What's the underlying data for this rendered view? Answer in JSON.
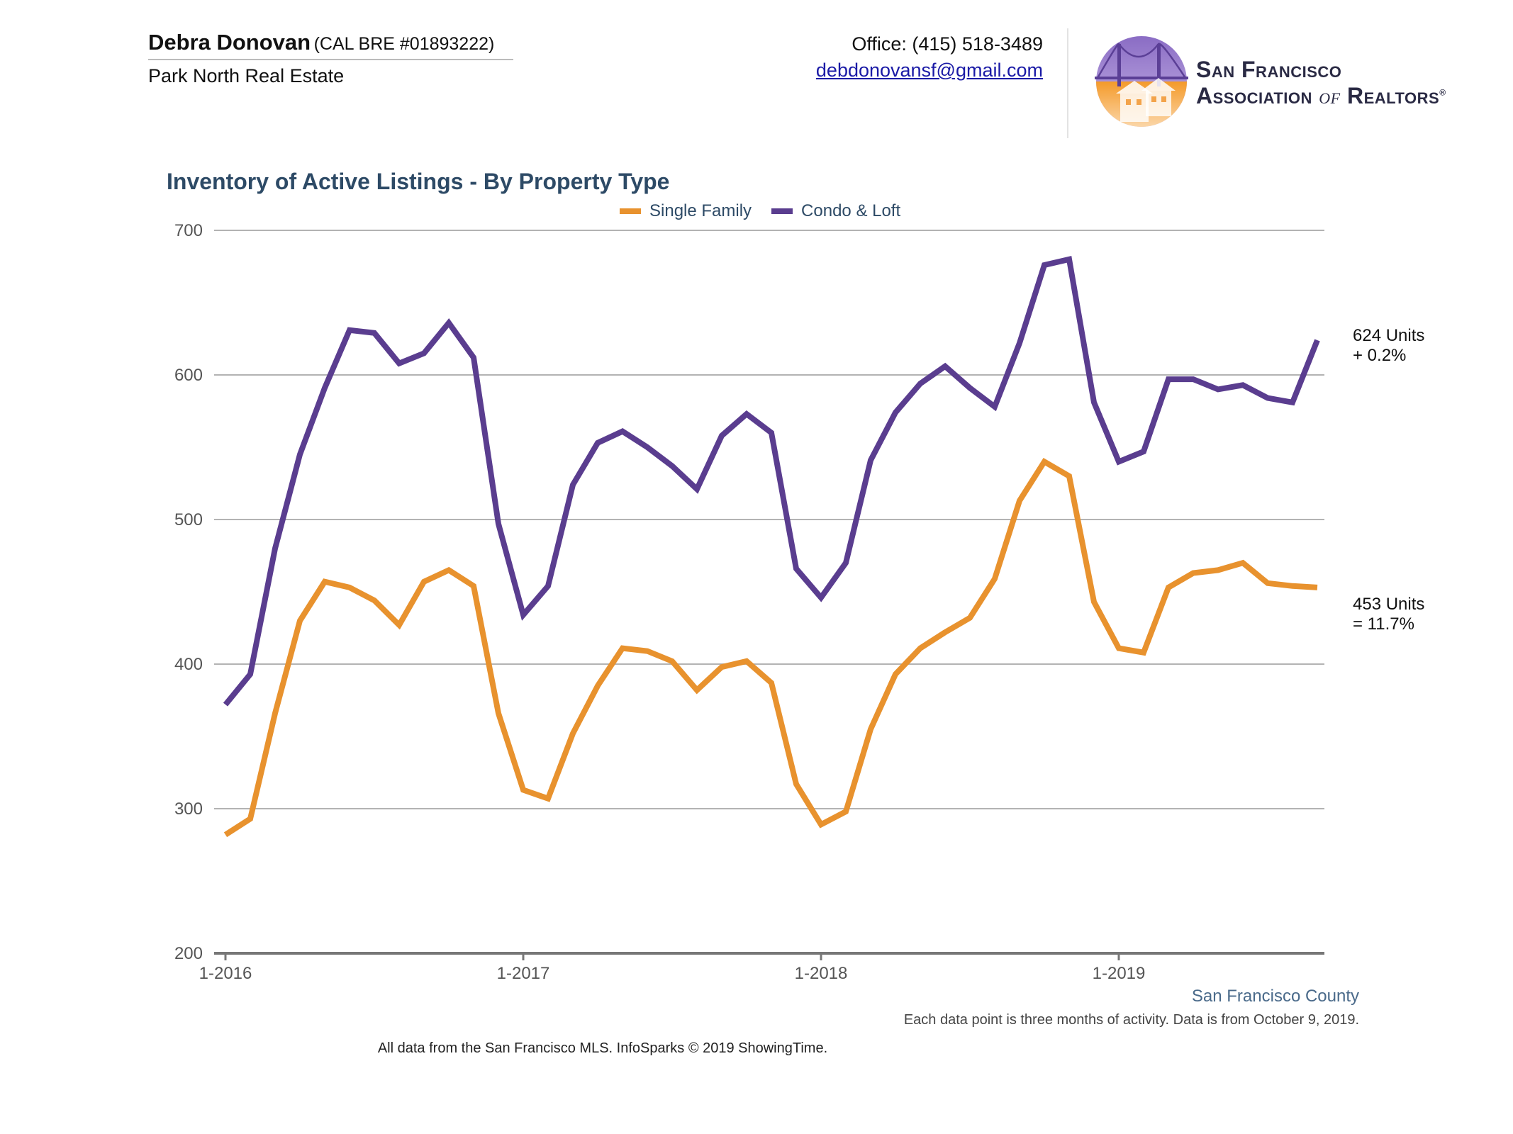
{
  "header": {
    "agent_name": "Debra Donovan",
    "license": "(CAL BRE #01893222)",
    "brokerage": "Park North Real Estate",
    "office_phone": "Office: (415) 518-3489",
    "email": "debdonovansf@gmail.com",
    "association_line1": "San Francisco",
    "association_line2_a": "Association ",
    "association_line2_of": "of",
    "association_line2_b": " Realtors",
    "association_reg": "®",
    "logo_icon": "golden-gate-houses-logo-icon"
  },
  "colors": {
    "single_family": "#e8922e",
    "condo_loft": "#5a3d8f",
    "title": "#2d4a66",
    "grid": "#b3b3b3",
    "axis": "#777777"
  },
  "chart_data": {
    "type": "line",
    "title": "Inventory of Active Listings - By Property Type",
    "xlabel": "",
    "ylabel": "",
    "ylim": [
      200,
      700
    ],
    "yticks": [
      200,
      300,
      400,
      500,
      600,
      700
    ],
    "ytick_labels": [
      "200",
      "300",
      "400",
      "500",
      "600",
      "700"
    ],
    "xtick_labels": [
      "1-2016",
      "1-2017",
      "1-2018",
      "1-2019"
    ],
    "xtick_indices": [
      0,
      12,
      24,
      36
    ],
    "grid": true,
    "legend_position": "top-center",
    "x": [
      "1-2016",
      "2-2016",
      "3-2016",
      "4-2016",
      "5-2016",
      "6-2016",
      "7-2016",
      "8-2016",
      "9-2016",
      "10-2016",
      "11-2016",
      "12-2016",
      "1-2017",
      "2-2017",
      "3-2017",
      "4-2017",
      "5-2017",
      "6-2017",
      "7-2017",
      "8-2017",
      "9-2017",
      "10-2017",
      "11-2017",
      "12-2017",
      "1-2018",
      "2-2018",
      "3-2018",
      "4-2018",
      "5-2018",
      "6-2018",
      "7-2018",
      "8-2018",
      "9-2018",
      "10-2018",
      "11-2018",
      "12-2018",
      "1-2019",
      "2-2019",
      "3-2019",
      "4-2019",
      "5-2019",
      "6-2019",
      "7-2019",
      "8-2019",
      "9-2019"
    ],
    "series": [
      {
        "name": "Single Family",
        "values": [
          282,
          293,
          366,
          430,
          457,
          453,
          444,
          427,
          457,
          465,
          454,
          366,
          313,
          307,
          352,
          385,
          411,
          409,
          402,
          382,
          398,
          402,
          387,
          317,
          289,
          298,
          355,
          393,
          411,
          422,
          432,
          459,
          513,
          540,
          530,
          443,
          411,
          408,
          453,
          463,
          465,
          470,
          456,
          454,
          453
        ]
      },
      {
        "name": "Condo & Loft",
        "values": [
          372,
          393,
          480,
          545,
          591,
          631,
          629,
          608,
          615,
          636,
          612,
          497,
          434,
          454,
          524,
          553,
          561,
          550,
          537,
          521,
          558,
          573,
          560,
          466,
          446,
          470,
          541,
          574,
          594,
          606,
          591,
          578,
          622,
          676,
          680,
          581,
          540,
          547,
          597,
          597,
          590,
          593,
          584,
          581,
          624
        ]
      }
    ],
    "end_labels": [
      {
        "series": "Condo & Loft",
        "line1": "624 Units",
        "line2": "+ 0.2%"
      },
      {
        "series": "Single Family",
        "line1": "453 Units",
        "line2": "= 11.7%"
      }
    ]
  },
  "footer": {
    "county": "San Francisco County",
    "note": "Each data point is three months of activity. Data is from October 9, 2019.",
    "source": "All data from the San Francisco MLS. InfoSparks © 2019 ShowingTime."
  }
}
